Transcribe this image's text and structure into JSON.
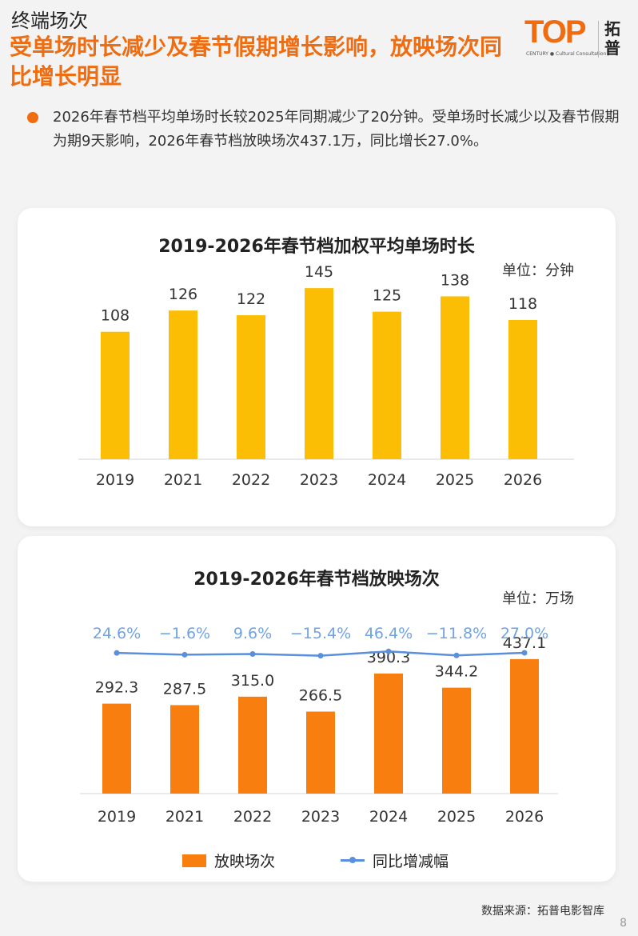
{
  "header": {
    "section": "终端场次",
    "headline": "受单场时长减少及春节假期增长影响，放映场次同比增长明显",
    "logo_top": "TOP",
    "logo_sub": "CENTURY ● Cultural Consultation",
    "logo_cn": "拓普"
  },
  "summary": "2026年春节档平均单场时长较2025年同期减少了20分钟。受单场时长减少以及春节假期为期9天影响，2026年春节档放映场次437.1万，同比增长27.0%。",
  "colors": {
    "accent": "#ef6c10",
    "bar1": "#fbbe05",
    "bar2": "#f77e0f",
    "line": "#5a8fdc",
    "line_label": "#6fa3e3"
  },
  "chart_data": [
    {
      "type": "bar",
      "title": "2019-2026年春节档加权平均单场时长",
      "unit": "单位：分钟",
      "categories": [
        "2019",
        "2021",
        "2022",
        "2023",
        "2024",
        "2025",
        "2026"
      ],
      "values": [
        108,
        126,
        122,
        145,
        125,
        138,
        118
      ],
      "value_labels": [
        "108",
        "126",
        "122",
        "145",
        "125",
        "138",
        "118"
      ],
      "ylim": [
        0,
        160
      ]
    },
    {
      "type": "bar+line",
      "title": "2019-2026年春节档放映场次",
      "unit": "单位：万场",
      "categories": [
        "2019",
        "2021",
        "2022",
        "2023",
        "2024",
        "2025",
        "2026"
      ],
      "series": [
        {
          "name": "放映场次",
          "values": [
            292.3,
            287.5,
            315.0,
            266.5,
            390.3,
            344.2,
            437.1
          ],
          "labels": [
            "292.3",
            "287.5",
            "315.0",
            "266.5",
            "390.3",
            "344.2",
            "437.1"
          ]
        },
        {
          "name": "同比增减幅",
          "values": [
            24.6,
            -1.6,
            9.6,
            -15.4,
            46.4,
            -11.8,
            27.0
          ],
          "labels": [
            "24.6%",
            "−1.6%",
            "9.6%",
            "−15.4%",
            "46.4%",
            "−11.8%",
            "27.0%"
          ]
        }
      ],
      "ylim": [
        0,
        520
      ]
    }
  ],
  "source": "数据来源：拓普电影智库",
  "page_number": "8"
}
